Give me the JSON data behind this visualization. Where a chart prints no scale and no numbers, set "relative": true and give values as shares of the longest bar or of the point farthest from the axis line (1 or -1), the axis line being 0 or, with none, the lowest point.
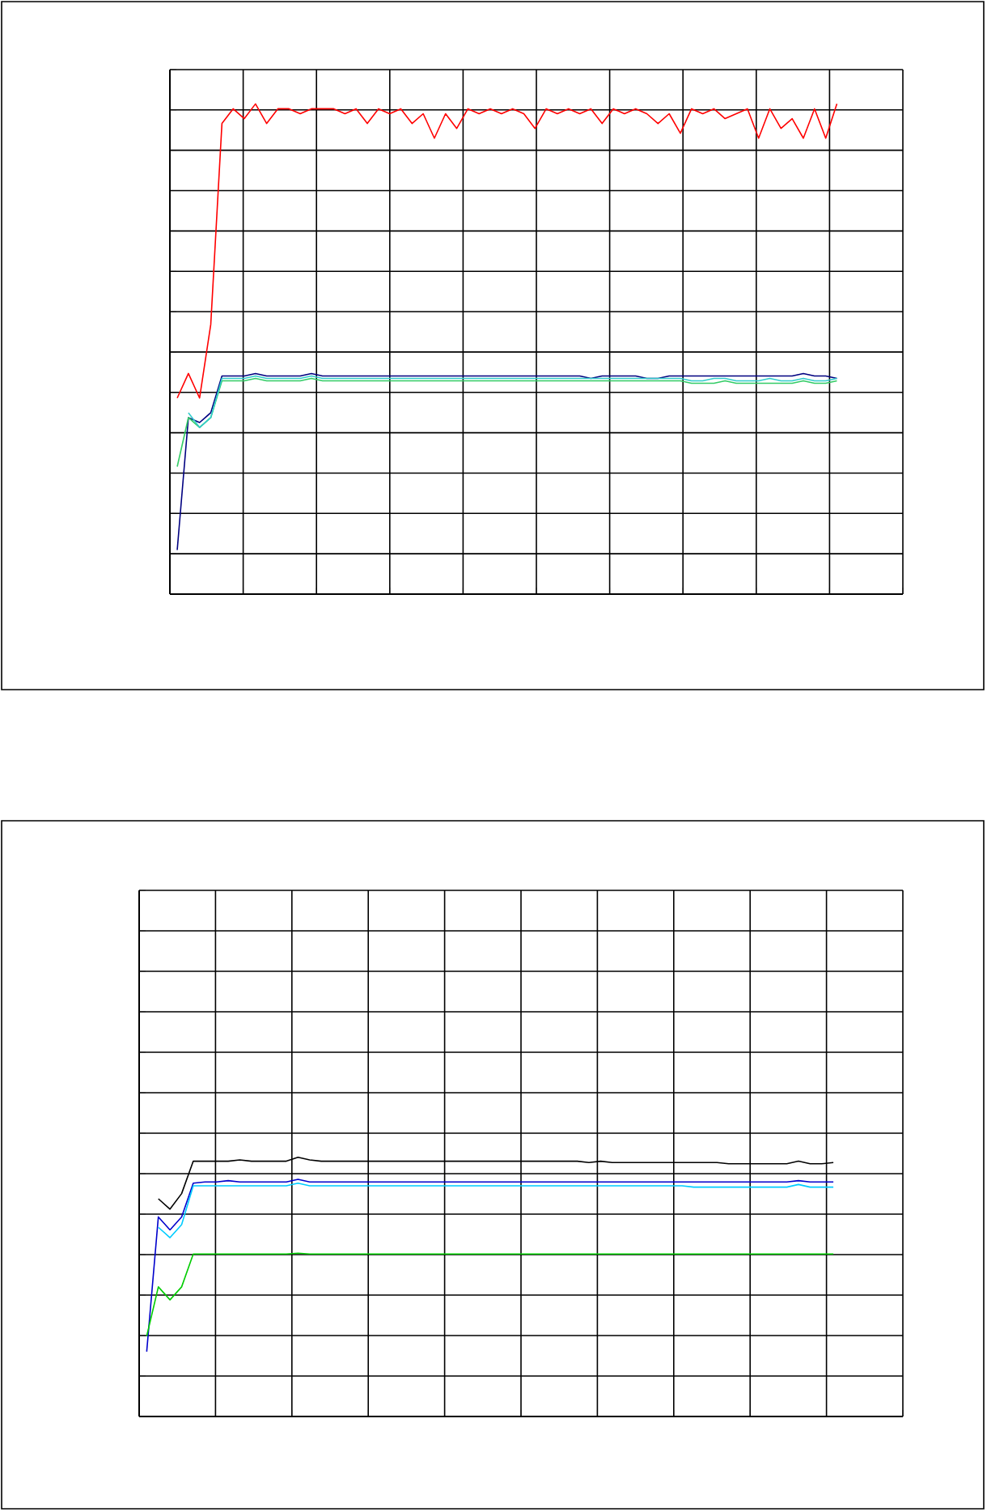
{
  "chart_data": [
    {
      "type": "line",
      "relative": true,
      "grid": true,
      "tick_labels": false,
      "categories": [
        null,
        null,
        null,
        null,
        null,
        null,
        null,
        null,
        null,
        null,
        null,
        null,
        null,
        null,
        null,
        null,
        null,
        null,
        null,
        null,
        null,
        null,
        null,
        null,
        null,
        null,
        null,
        null,
        null,
        null,
        null,
        null,
        null,
        null,
        null,
        null,
        null,
        null,
        null,
        null,
        null,
        null,
        null,
        null,
        null,
        null,
        null,
        null,
        null,
        null,
        null,
        null,
        null,
        null,
        null,
        null,
        null,
        null,
        null,
        null
      ],
      "series": [
        {
          "color": "#ff0000",
          "values": [
            0.4,
            0.45,
            0.4,
            0.55,
            0.96,
            0.99,
            0.97,
            1.0,
            0.96,
            0.99,
            0.99,
            0.98,
            0.99,
            0.99,
            0.99,
            0.98,
            0.99,
            0.96,
            0.99,
            0.98,
            0.99,
            0.96,
            0.98,
            0.93,
            0.98,
            0.95,
            0.99,
            0.98,
            0.99,
            0.98,
            0.99,
            0.98,
            0.95,
            0.99,
            0.98,
            0.99,
            0.98,
            0.99,
            0.96,
            0.99,
            0.98,
            0.99,
            0.98,
            0.96,
            0.98,
            0.94,
            0.99,
            0.98,
            0.99,
            0.97,
            0.98,
            0.99,
            0.93,
            0.99,
            0.95,
            0.97,
            0.93,
            0.99,
            0.93,
            1.0
          ]
        },
        {
          "color": "#000080",
          "values": [
            0.09,
            0.36,
            0.35,
            0.37,
            0.445,
            0.445,
            0.445,
            0.45,
            0.445,
            0.445,
            0.445,
            0.445,
            0.45,
            0.445,
            0.445,
            0.445,
            0.445,
            0.445,
            0.445,
            0.445,
            0.445,
            0.445,
            0.445,
            0.445,
            0.445,
            0.445,
            0.445,
            0.445,
            0.445,
            0.445,
            0.445,
            0.445,
            0.445,
            0.445,
            0.445,
            0.445,
            0.445,
            0.44,
            0.445,
            0.445,
            0.445,
            0.445,
            0.44,
            0.44,
            0.445,
            0.445,
            0.445,
            0.445,
            0.445,
            0.445,
            0.445,
            0.445,
            0.445,
            0.445,
            0.445,
            0.445,
            0.45,
            0.445,
            0.445,
            0.44
          ]
        },
        {
          "color": "#33cc66",
          "values": [
            0.26,
            0.36,
            0.34,
            0.36,
            0.435,
            0.435,
            0.435,
            0.44,
            0.435,
            0.435,
            0.435,
            0.435,
            0.44,
            0.435,
            0.435,
            0.435,
            0.435,
            0.435,
            0.435,
            0.435,
            0.435,
            0.435,
            0.435,
            0.435,
            0.435,
            0.435,
            0.435,
            0.435,
            0.435,
            0.435,
            0.435,
            0.435,
            0.435,
            0.435,
            0.435,
            0.435,
            0.435,
            0.435,
            0.435,
            0.435,
            0.435,
            0.435,
            0.435,
            0.435,
            0.435,
            0.435,
            0.43,
            0.43,
            0.43,
            0.435,
            0.43,
            0.43,
            0.43,
            0.43,
            0.43,
            0.43,
            0.435,
            0.43,
            0.43,
            0.435
          ]
        },
        {
          "color": "#33cccc",
          "values": [
            null,
            0.37,
            0.34,
            0.36,
            0.44,
            0.44,
            0.44,
            0.445,
            0.44,
            0.44,
            0.44,
            0.44,
            0.445,
            0.44,
            0.44,
            0.44,
            0.44,
            0.44,
            0.44,
            0.44,
            0.44,
            0.44,
            0.44,
            0.44,
            0.44,
            0.44,
            0.44,
            0.44,
            0.44,
            0.44,
            0.44,
            0.44,
            0.44,
            0.44,
            0.44,
            0.44,
            0.44,
            0.44,
            0.44,
            0.44,
            0.44,
            0.44,
            0.44,
            0.44,
            0.44,
            0.44,
            0.435,
            0.435,
            0.44,
            0.44,
            0.435,
            0.435,
            0.435,
            0.44,
            0.435,
            0.435,
            0.44,
            0.435,
            0.435,
            0.44
          ]
        }
      ]
    },
    {
      "type": "line",
      "relative": true,
      "grid": true,
      "tick_labels": false,
      "categories": [
        null,
        null,
        null,
        null,
        null,
        null,
        null,
        null,
        null,
        null,
        null,
        null,
        null,
        null,
        null,
        null,
        null,
        null,
        null,
        null,
        null,
        null,
        null,
        null,
        null,
        null,
        null,
        null,
        null,
        null,
        null,
        null,
        null,
        null,
        null,
        null,
        null,
        null,
        null,
        null,
        null,
        null,
        null,
        null,
        null,
        null,
        null,
        null,
        null,
        null,
        null,
        null,
        null,
        null,
        null,
        null,
        null,
        null,
        null,
        null
      ],
      "series": [
        {
          "color": "#000000",
          "values": [
            null,
            0.84,
            0.8,
            0.86,
            0.985,
            0.985,
            0.985,
            0.985,
            0.99,
            0.985,
            0.985,
            0.985,
            0.985,
            1.0,
            0.99,
            0.985,
            0.985,
            0.985,
            0.985,
            0.985,
            0.985,
            0.985,
            0.985,
            0.985,
            0.985,
            0.985,
            0.985,
            0.985,
            0.985,
            0.985,
            0.985,
            0.985,
            0.985,
            0.985,
            0.985,
            0.985,
            0.985,
            0.985,
            0.98,
            0.985,
            0.98,
            0.98,
            0.98,
            0.98,
            0.98,
            0.98,
            0.98,
            0.98,
            0.98,
            0.98,
            0.975,
            0.975,
            0.975,
            0.975,
            0.975,
            0.975,
            0.985,
            0.975,
            0.975,
            0.98
          ]
        },
        {
          "color": "#0000cc",
          "values": [
            0.25,
            0.77,
            0.72,
            0.77,
            0.9,
            0.905,
            0.905,
            0.91,
            0.905,
            0.905,
            0.905,
            0.905,
            0.905,
            0.915,
            0.905,
            0.905,
            0.905,
            0.905,
            0.905,
            0.905,
            0.905,
            0.905,
            0.905,
            0.905,
            0.905,
            0.905,
            0.905,
            0.905,
            0.905,
            0.905,
            0.905,
            0.905,
            0.905,
            0.905,
            0.905,
            0.905,
            0.905,
            0.905,
            0.905,
            0.905,
            0.905,
            0.905,
            0.905,
            0.905,
            0.905,
            0.905,
            0.905,
            0.905,
            0.905,
            0.905,
            0.905,
            0.905,
            0.905,
            0.905,
            0.905,
            0.905,
            0.91,
            0.905,
            0.905,
            0.905
          ]
        },
        {
          "color": "#00ccff",
          "values": [
            null,
            0.73,
            0.69,
            0.74,
            0.89,
            0.89,
            0.89,
            0.89,
            0.89,
            0.89,
            0.89,
            0.89,
            0.89,
            0.9,
            0.89,
            0.89,
            0.89,
            0.89,
            0.89,
            0.89,
            0.89,
            0.89,
            0.89,
            0.89,
            0.89,
            0.89,
            0.89,
            0.89,
            0.89,
            0.89,
            0.89,
            0.89,
            0.89,
            0.89,
            0.89,
            0.89,
            0.89,
            0.89,
            0.89,
            0.89,
            0.89,
            0.89,
            0.89,
            0.89,
            0.89,
            0.89,
            0.89,
            0.885,
            0.885,
            0.885,
            0.885,
            0.885,
            0.885,
            0.885,
            0.885,
            0.885,
            0.895,
            0.885,
            0.885,
            0.885
          ]
        },
        {
          "color": "#00cc00",
          "values": [
            0.31,
            0.5,
            0.45,
            0.5,
            0.627,
            0.627,
            0.627,
            0.627,
            0.627,
            0.627,
            0.627,
            0.627,
            0.627,
            0.63,
            0.627,
            0.627,
            0.627,
            0.627,
            0.627,
            0.627,
            0.627,
            0.627,
            0.627,
            0.627,
            0.627,
            0.627,
            0.627,
            0.627,
            0.627,
            0.627,
            0.627,
            0.627,
            0.627,
            0.627,
            0.627,
            0.627,
            0.627,
            0.627,
            0.627,
            0.627,
            0.627,
            0.627,
            0.627,
            0.627,
            0.627,
            0.627,
            0.627,
            0.627,
            0.627,
            0.627,
            0.627,
            0.627,
            0.627,
            0.627,
            0.627,
            0.627,
            0.627,
            0.627,
            0.627,
            0.627
          ]
        }
      ]
    }
  ]
}
